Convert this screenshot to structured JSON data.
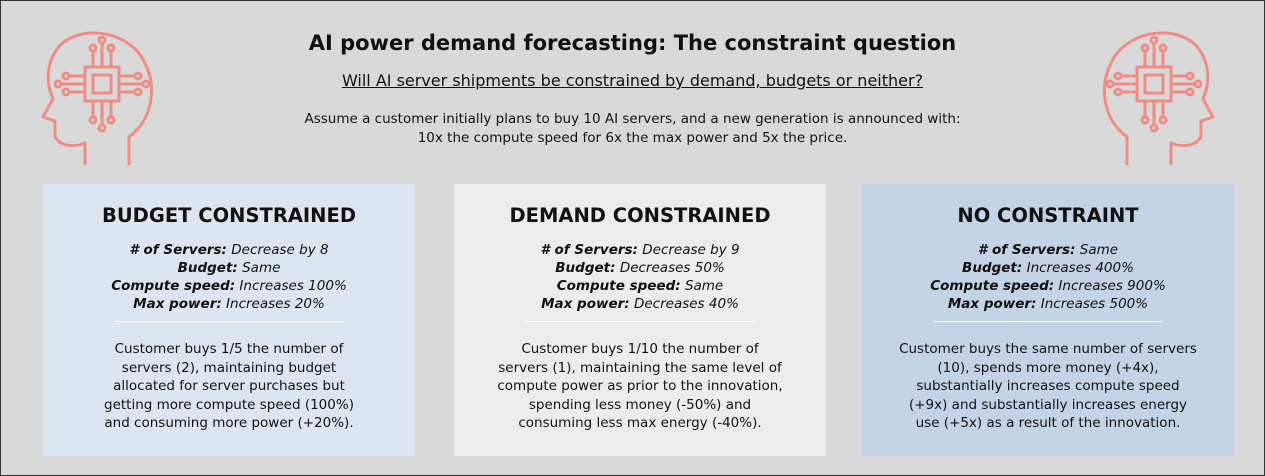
{
  "header": {
    "title": "AI power demand forecasting: The constraint question",
    "subtitle": "Will AI server shipments be constrained by demand, budgets or neither?",
    "intro": [
      "Assume a customer initially plans to buy 10 AI servers, and a new generation is announced with:",
      "10x the compute speed for 6x the max power and 5x the price."
    ]
  },
  "cards": [
    {
      "title": "BUDGET CONSTRAINED",
      "items": [
        {
          "label": "# of Servers:",
          "value": "Decrease by 8"
        },
        {
          "label": "Budget:",
          "value": "Same"
        },
        {
          "label": "Compute speed:",
          "value": "Increases 100%"
        },
        {
          "label": "Max power:",
          "value": "Increases 20%"
        }
      ],
      "description": [
        "Customer buys 1/5 the number of",
        "servers (2), maintaining budget",
        "allocated for server purchases but",
        "getting more compute speed (100%)",
        "and consuming more power (+20%)."
      ]
    },
    {
      "title": "DEMAND CONSTRAINED",
      "items": [
        {
          "label": "# of Servers:",
          "value": "Decrease by 9"
        },
        {
          "label": "Budget:",
          "value": "Decreases 50%"
        },
        {
          "label": "Compute speed:",
          "value": "Same"
        },
        {
          "label": "Max power:",
          "value": "Decreases 40%"
        }
      ],
      "description": [
        "Customer buys  1/10 the number of",
        "servers (1), maintaining the same level of",
        "compute power as prior to the innovation,",
        "spending less money (-50%) and",
        "consuming less max energy (-40%)."
      ]
    },
    {
      "title": "NO CONSTRAINT",
      "items": [
        {
          "label": "# of Servers:",
          "value": "Same"
        },
        {
          "label": "Budget:",
          "value": "Increases 400%"
        },
        {
          "label": "Compute speed:",
          "value": "Increases 900%"
        },
        {
          "label": "Max power:",
          "value": "Increases 500%"
        }
      ],
      "description": [
        "Customer buys the same number of servers",
        "(10), spends more money (+4x),",
        "substantially increases compute speed",
        "(+9x) and substantially increases energy",
        "use (+5x) as a result of the innovation."
      ]
    }
  ]
}
